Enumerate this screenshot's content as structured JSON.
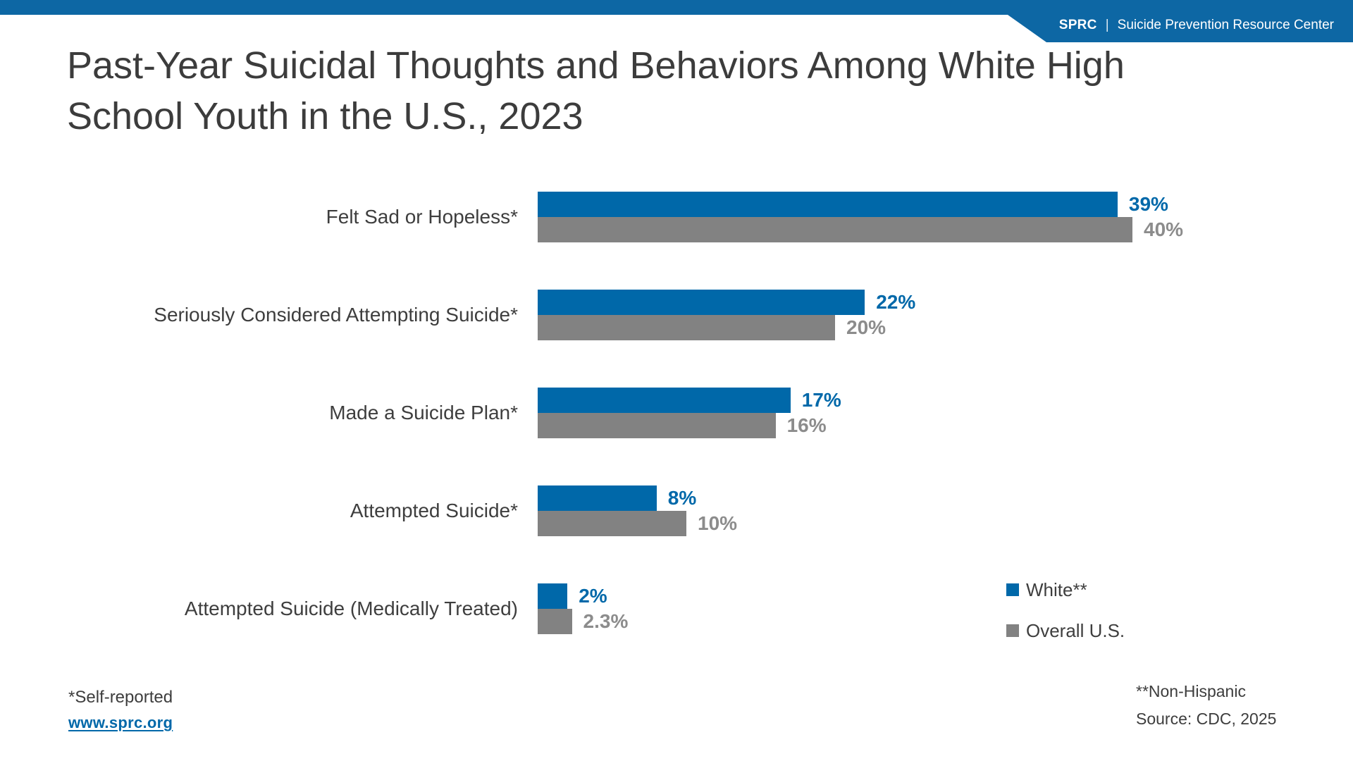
{
  "header": {
    "brand": "SPRC",
    "separator": "|",
    "org_name": "Suicide Prevention Resource Center"
  },
  "title": {
    "line1": "Past-Year Suicidal Thoughts and Behaviors Among White High",
    "line2": "School Youth in the U.S., 2023"
  },
  "chart_data": {
    "type": "bar",
    "orientation": "horizontal",
    "unit": "%",
    "title": "Past-Year Suicidal Thoughts and Behaviors Among White High School Youth in the U.S., 2023",
    "categories": [
      "Felt Sad or Hopeless*",
      "Seriously Considered Attempting Suicide*",
      "Made a Suicide Plan*",
      "Attempted Suicide*",
      "Attempted Suicide (Medically Treated)"
    ],
    "series": [
      {
        "name": "White**",
        "key": "white",
        "color": "#0068A9",
        "label_color": "#0068A9",
        "values": [
          39,
          22,
          17,
          8,
          2
        ],
        "value_labels": [
          "39%",
          "22%",
          "17%",
          "8%",
          "2%"
        ]
      },
      {
        "name": "Overall U.S.",
        "key": "overall-us",
        "color": "#828282",
        "label_color": "#8C8C8C",
        "values": [
          40,
          20,
          16,
          10,
          2.3
        ],
        "value_labels": [
          "40%",
          "20%",
          "16%",
          "10%",
          "2.3%"
        ]
      }
    ],
    "xlabel": "",
    "ylabel": "",
    "xlim": [
      0,
      45
    ],
    "grid": false,
    "axis_ticks_shown": false,
    "value_labels_shown": true,
    "legend_position": "bottom-right"
  },
  "footnotes": {
    "self_reported": "*Self-reported",
    "link": "www.sprc.org",
    "non_hispanic": "**Non-Hispanic",
    "source": "Source: CDC, 2025"
  },
  "colors": {
    "brand_blue": "#0D67A4",
    "series_blue": "#0068A9",
    "series_gray": "#828282",
    "gray_label": "#8C8C8C",
    "text_dark": "#3D3D3D",
    "link_blue": "#0068A9"
  }
}
